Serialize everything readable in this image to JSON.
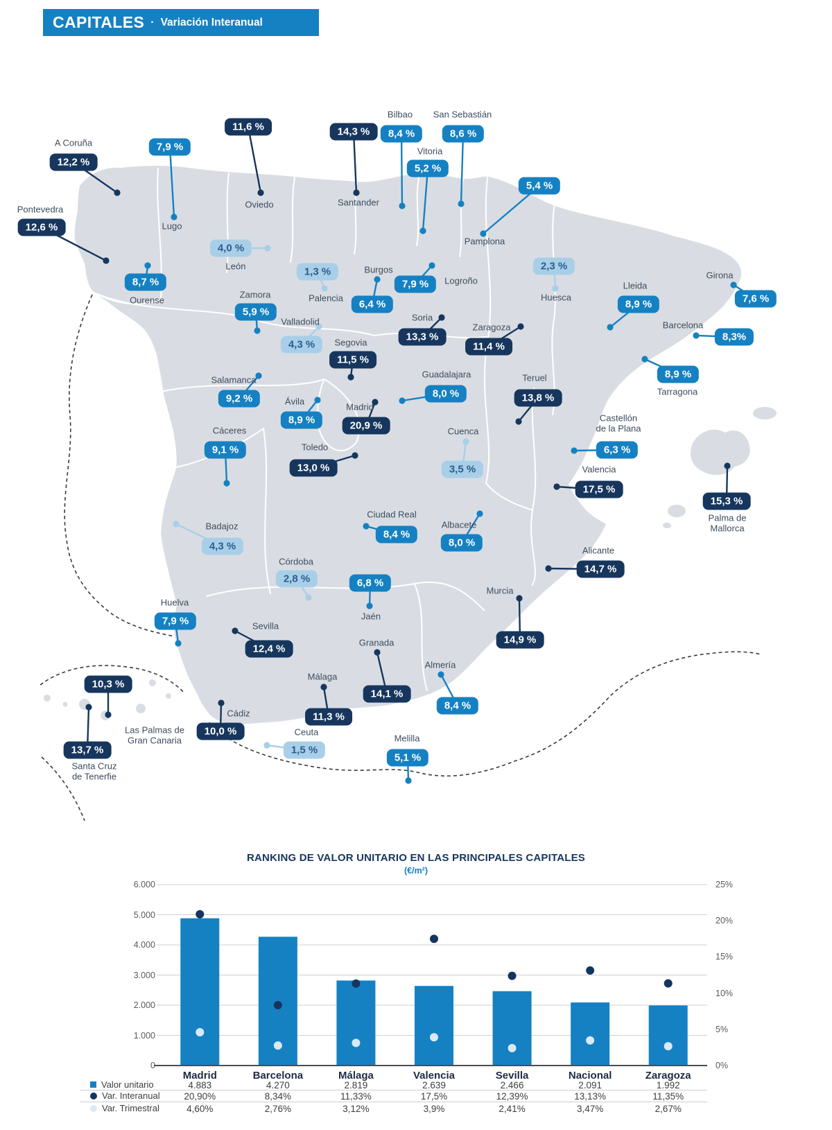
{
  "header": {
    "title": "CAPITALES",
    "separator": "·",
    "subtitle": "Variación Interanual"
  },
  "palette": {
    "dark": "#17365d",
    "medium": "#1581c2",
    "light": "#a9cfe8",
    "light_badge_text": "#2a5d90",
    "map_land": "#d9dde3",
    "map_label": "#3e4c5e",
    "coast_dash": "#3a3a3a"
  },
  "map": {
    "cities": [
      {
        "name": "A Coruña",
        "value": "12,2 %",
        "tone": "dark",
        "badge": [
          106,
          234
        ],
        "dot": [
          169,
          278
        ],
        "label": [
          106,
          207
        ]
      },
      {
        "name": "Pontevedra",
        "value": "12,6 %",
        "tone": "dark",
        "badge": [
          60,
          328
        ],
        "dot": [
          153,
          376
        ],
        "label": [
          58,
          303
        ]
      },
      {
        "name": "Lugo",
        "value": "7,9 %",
        "tone": "medium",
        "badge": [
          245,
          212
        ],
        "dot": [
          251,
          313
        ],
        "label": [
          248,
          327
        ]
      },
      {
        "name": "Ourense",
        "value": "8,7 %",
        "tone": "medium",
        "badge": [
          210,
          407
        ],
        "dot": [
          213,
          383
        ],
        "label": [
          212,
          434
        ]
      },
      {
        "name": "Oviedo",
        "value": "11,6 %",
        "tone": "dark",
        "badge": [
          358,
          183
        ],
        "dot": [
          376,
          278
        ],
        "label": [
          374,
          296
        ]
      },
      {
        "name": "León",
        "value": "4,0 %",
        "tone": "light",
        "badge": [
          333,
          358
        ],
        "dot": [
          386,
          358
        ],
        "label": [
          340,
          385
        ]
      },
      {
        "name": "Santander",
        "value": "14,3 %",
        "tone": "dark",
        "badge": [
          510,
          190
        ],
        "dot": [
          514,
          278
        ],
        "label": [
          517,
          293
        ]
      },
      {
        "name": "Bilbao",
        "value": "8,4 %",
        "tone": "medium",
        "badge": [
          579,
          193
        ],
        "dot": [
          580,
          297
        ],
        "label": [
          577,
          166
        ]
      },
      {
        "name": "San Sebastián",
        "value": "8,6 %",
        "tone": "medium",
        "badge": [
          668,
          193
        ],
        "dot": [
          665,
          294
        ],
        "label": [
          667,
          166
        ]
      },
      {
        "name": "Vitoria",
        "value": "5,2 %",
        "tone": "medium",
        "badge": [
          617,
          243
        ],
        "dot": [
          610,
          333
        ],
        "label": [
          620,
          219
        ]
      },
      {
        "name": "Pamplona",
        "value": "5,4 %",
        "tone": "medium",
        "badge": [
          778,
          268
        ],
        "dot": [
          697,
          337
        ],
        "label": [
          699,
          349
        ]
      },
      {
        "name": "Palencia",
        "value": "1,3 %",
        "tone": "light",
        "badge": [
          458,
          392
        ],
        "dot": [
          468,
          416
        ],
        "label": [
          470,
          431
        ]
      },
      {
        "name": "Burgos",
        "value": "6,4 %",
        "tone": "medium",
        "badge": [
          537,
          439
        ],
        "dot": [
          544,
          403
        ],
        "label": [
          546,
          390
        ]
      },
      {
        "name": "Logroño",
        "value": "7,9 %",
        "tone": "medium",
        "badge": [
          599,
          410
        ],
        "dot": [
          623,
          383
        ],
        "label": [
          665,
          406
        ]
      },
      {
        "name": "Huesca",
        "value": "2,3 %",
        "tone": "light",
        "badge": [
          799,
          384
        ],
        "dot": [
          801,
          416
        ],
        "label": [
          802,
          430
        ]
      },
      {
        "name": "Zamora",
        "value": "5,9 %",
        "tone": "medium",
        "badge": [
          369,
          450
        ],
        "dot": [
          371,
          477
        ],
        "label": [
          368,
          426
        ]
      },
      {
        "name": "Valladolid",
        "value": "4,3 %",
        "tone": "light",
        "badge": [
          435,
          497
        ],
        "dot": [
          460,
          471
        ],
        "label": [
          433,
          465
        ]
      },
      {
        "name": "Segovia",
        "value": "11,5 %",
        "tone": "dark",
        "badge": [
          509,
          519
        ],
        "dot": [
          506,
          544
        ],
        "label": [
          506,
          495
        ]
      },
      {
        "name": "Soria",
        "value": "13,3 %",
        "tone": "dark",
        "badge": [
          609,
          486
        ],
        "dot": [
          637,
          458
        ],
        "label": [
          609,
          459
        ]
      },
      {
        "name": "Zaragoza",
        "value": "11,4 %",
        "tone": "dark",
        "badge": [
          705,
          500
        ],
        "dot": [
          751,
          471
        ],
        "label": [
          709,
          473
        ]
      },
      {
        "name": "Lleida",
        "value": "8,9 %",
        "tone": "medium",
        "badge": [
          921,
          439
        ],
        "dot": [
          880,
          472
        ],
        "label": [
          916,
          413
        ]
      },
      {
        "name": "Girona",
        "value": "7,6 %",
        "tone": "medium",
        "badge": [
          1090,
          431
        ],
        "dot": [
          1058,
          411
        ],
        "label": [
          1038,
          398
        ]
      },
      {
        "name": "Barcelona",
        "value": "8,3%",
        "tone": "medium",
        "badge": [
          1059,
          486
        ],
        "dot": [
          1004,
          484
        ],
        "label": [
          985,
          470
        ]
      },
      {
        "name": "Tarragona",
        "value": "8,9 %",
        "tone": "medium",
        "badge": [
          978,
          540
        ],
        "dot": [
          930,
          518
        ],
        "label": [
          977,
          566
        ]
      },
      {
        "name": "Salamanca",
        "value": "9,2 %",
        "tone": "medium",
        "badge": [
          345,
          575
        ],
        "dot": [
          373,
          542
        ],
        "label": [
          337,
          549
        ]
      },
      {
        "name": "Ávila",
        "value": "8,9 %",
        "tone": "medium",
        "badge": [
          435,
          606
        ],
        "dot": [
          458,
          577
        ],
        "label": [
          425,
          580
        ]
      },
      {
        "name": "Madrid",
        "value": "20,9 %",
        "tone": "dark",
        "badge": [
          528,
          614
        ],
        "dot": [
          541,
          580
        ],
        "label": [
          519,
          588
        ]
      },
      {
        "name": "Guadalajara",
        "value": "8,0 %",
        "tone": "medium",
        "badge": [
          643,
          568
        ],
        "dot": [
          580,
          578
        ],
        "label": [
          644,
          541
        ]
      },
      {
        "name": "Cuenca",
        "value": "3,5 %",
        "tone": "light",
        "badge": [
          667,
          677
        ],
        "dot": [
          672,
          637
        ],
        "label": [
          668,
          623
        ]
      },
      {
        "name": "Teruel",
        "value": "13,8 %",
        "tone": "dark",
        "badge": [
          776,
          574
        ],
        "dot": [
          748,
          608
        ],
        "label": [
          771,
          546
        ]
      },
      {
        "name": "Toledo",
        "value": "13,0 %",
        "tone": "dark",
        "badge": [
          452,
          675
        ],
        "dot": [
          512,
          657
        ],
        "label": [
          454,
          646
        ]
      },
      {
        "name": "Cáceres",
        "value": "9,1 %",
        "tone": "medium",
        "badge": [
          325,
          649
        ],
        "dot": [
          327,
          697
        ],
        "label": [
          331,
          622
        ]
      },
      {
        "name": "Castellón de la Plana",
        "value": "6,3 %",
        "tone": "medium",
        "badge": [
          890,
          649
        ],
        "dot": [
          828,
          650
        ],
        "label": [
          892,
          611
        ],
        "label_text": "Castellón\nde la Plana"
      },
      {
        "name": "Valencia",
        "value": "17,5 %",
        "tone": "dark",
        "badge": [
          864,
          706
        ],
        "dot": [
          803,
          702
        ],
        "label": [
          864,
          678
        ]
      },
      {
        "name": "Badajoz",
        "value": "4,3 %",
        "tone": "light",
        "badge": [
          321,
          788
        ],
        "dot": [
          254,
          756
        ],
        "label": [
          320,
          760
        ]
      },
      {
        "name": "Ciudad Real",
        "value": "8,4 %",
        "tone": "medium",
        "badge": [
          572,
          771
        ],
        "dot": [
          528,
          759
        ],
        "label": [
          565,
          743
        ]
      },
      {
        "name": "Albacete",
        "value": "8,0 %",
        "tone": "medium",
        "badge": [
          666,
          783
        ],
        "dot": [
          692,
          741
        ],
        "label": [
          662,
          758
        ]
      },
      {
        "name": "Córdoba",
        "value": "2,8 %",
        "tone": "light",
        "badge": [
          428,
          835
        ],
        "dot": [
          445,
          862
        ],
        "label": [
          427,
          811
        ]
      },
      {
        "name": "Jaén",
        "value": "6,8 %",
        "tone": "medium",
        "badge": [
          534,
          841
        ],
        "dot": [
          533,
          874
        ],
        "label": [
          535,
          890
        ]
      },
      {
        "name": "Huelva",
        "value": "7,9 %",
        "tone": "medium",
        "badge": [
          253,
          896
        ],
        "dot": [
          257,
          928
        ],
        "label": [
          252,
          870
        ]
      },
      {
        "name": "Sevilla",
        "value": "12,4 %",
        "tone": "dark",
        "badge": [
          388,
          936
        ],
        "dot": [
          339,
          910
        ],
        "label": [
          383,
          904
        ]
      },
      {
        "name": "Granada",
        "value": "14,1 %",
        "tone": "dark",
        "badge": [
          558,
          1001
        ],
        "dot": [
          544,
          941
        ],
        "label": [
          543,
          928
        ]
      },
      {
        "name": "Málaga",
        "value": "11,3 %",
        "tone": "dark",
        "badge": [
          474,
          1034
        ],
        "dot": [
          467,
          991
        ],
        "label": [
          465,
          977
        ]
      },
      {
        "name": "Almería",
        "value": "8,4 %",
        "tone": "medium",
        "badge": [
          660,
          1018
        ],
        "dot": [
          636,
          973
        ],
        "label": [
          635,
          960
        ]
      },
      {
        "name": "Alicante",
        "value": "14,7 %",
        "tone": "dark",
        "badge": [
          866,
          821
        ],
        "dot": [
          791,
          820
        ],
        "label": [
          863,
          795
        ]
      },
      {
        "name": "Murcia",
        "value": "14,9 %",
        "tone": "dark",
        "badge": [
          750,
          923
        ],
        "dot": [
          749,
          863
        ],
        "label": [
          721,
          853
        ]
      },
      {
        "name": "Cádiz",
        "value": "10,0 %",
        "tone": "dark",
        "badge": [
          318,
          1055
        ],
        "dot": [
          319,
          1014
        ],
        "label": [
          344,
          1030
        ]
      },
      {
        "name": "Ceuta",
        "value": "1,5 %",
        "tone": "light",
        "badge": [
          439,
          1082
        ],
        "dot": [
          385,
          1075
        ],
        "label": [
          442,
          1057
        ]
      },
      {
        "name": "Melilla",
        "value": "5,1 %",
        "tone": "medium",
        "badge": [
          588,
          1093
        ],
        "dot": [
          589,
          1126
        ],
        "label": [
          587,
          1066
        ]
      },
      {
        "name": "Las Palmas de Gran Canaria",
        "value": "10,3 %",
        "tone": "dark",
        "badge": [
          156,
          987
        ],
        "dot": [
          156,
          1031
        ],
        "label": [
          223,
          1061
        ],
        "label_text": "Las Palmas de\nGran Canaria"
      },
      {
        "name": "Santa Cruz de Tenerfie",
        "value": "13,7 %",
        "tone": "dark",
        "badge": [
          126,
          1082
        ],
        "dot": [
          128,
          1020
        ],
        "label": [
          136,
          1113
        ],
        "label_text": "Santa Cruz\nde Tenerfie"
      },
      {
        "name": "Palma de Mallorca",
        "value": "15,3 %",
        "tone": "dark",
        "badge": [
          1048,
          723
        ],
        "dot": [
          1049,
          672
        ],
        "label": [
          1049,
          755
        ],
        "label_text": "Palma de\nMallorca"
      }
    ]
  },
  "chart_data": {
    "type": "bar",
    "title": "RANKING DE VALOR UNITARIO EN LAS PRINCIPALES CAPITALES",
    "subtitle": "(€/m²)",
    "categories": [
      "Madrid",
      "Barcelona",
      "Málaga",
      "Valencia",
      "Sevilla",
      "Nacional",
      "Zaragoza"
    ],
    "left_axis": {
      "min": 0,
      "max": 6000,
      "step": 1000,
      "tick_labels": [
        "0",
        "1.000",
        "2.000",
        "3.000",
        "4.000",
        "5.000",
        "6.000"
      ]
    },
    "right_axis": {
      "min": 0,
      "max": 25,
      "step": 5,
      "tick_labels": [
        "0%",
        "5%",
        "10%",
        "15%",
        "20%",
        "25%"
      ]
    },
    "grid": true,
    "legend_position": "bottom-left-table",
    "series": [
      {
        "name": "Valor unitario",
        "type": "bar",
        "axis": "left",
        "marker": "square",
        "color": "#1581c2",
        "values": [
          4883,
          4270,
          2819,
          2639,
          2466,
          2091,
          1992
        ],
        "labels": [
          "4.883",
          "4.270",
          "2.819",
          "2.639",
          "2.466",
          "2.091",
          "1.992"
        ]
      },
      {
        "name": "Var. Interanual",
        "type": "point",
        "axis": "right",
        "marker": "circle",
        "color": "#14355f",
        "values": [
          20.9,
          8.34,
          11.33,
          17.5,
          12.39,
          13.13,
          11.35
        ],
        "labels": [
          "20,90%",
          "8,34%",
          "11,33%",
          "17,5%",
          "12,39%",
          "13,13%",
          "11,35%"
        ]
      },
      {
        "name": "Var. Trimestral",
        "type": "point",
        "axis": "right",
        "marker": "circle",
        "color": "#d9e9f6",
        "values": [
          4.6,
          2.76,
          3.12,
          3.9,
          2.41,
          3.47,
          2.67
        ],
        "labels": [
          "4,60%",
          "2,76%",
          "3,12%",
          "3,9%",
          "2,41%",
          "3,47%",
          "2,67%"
        ]
      }
    ]
  }
}
